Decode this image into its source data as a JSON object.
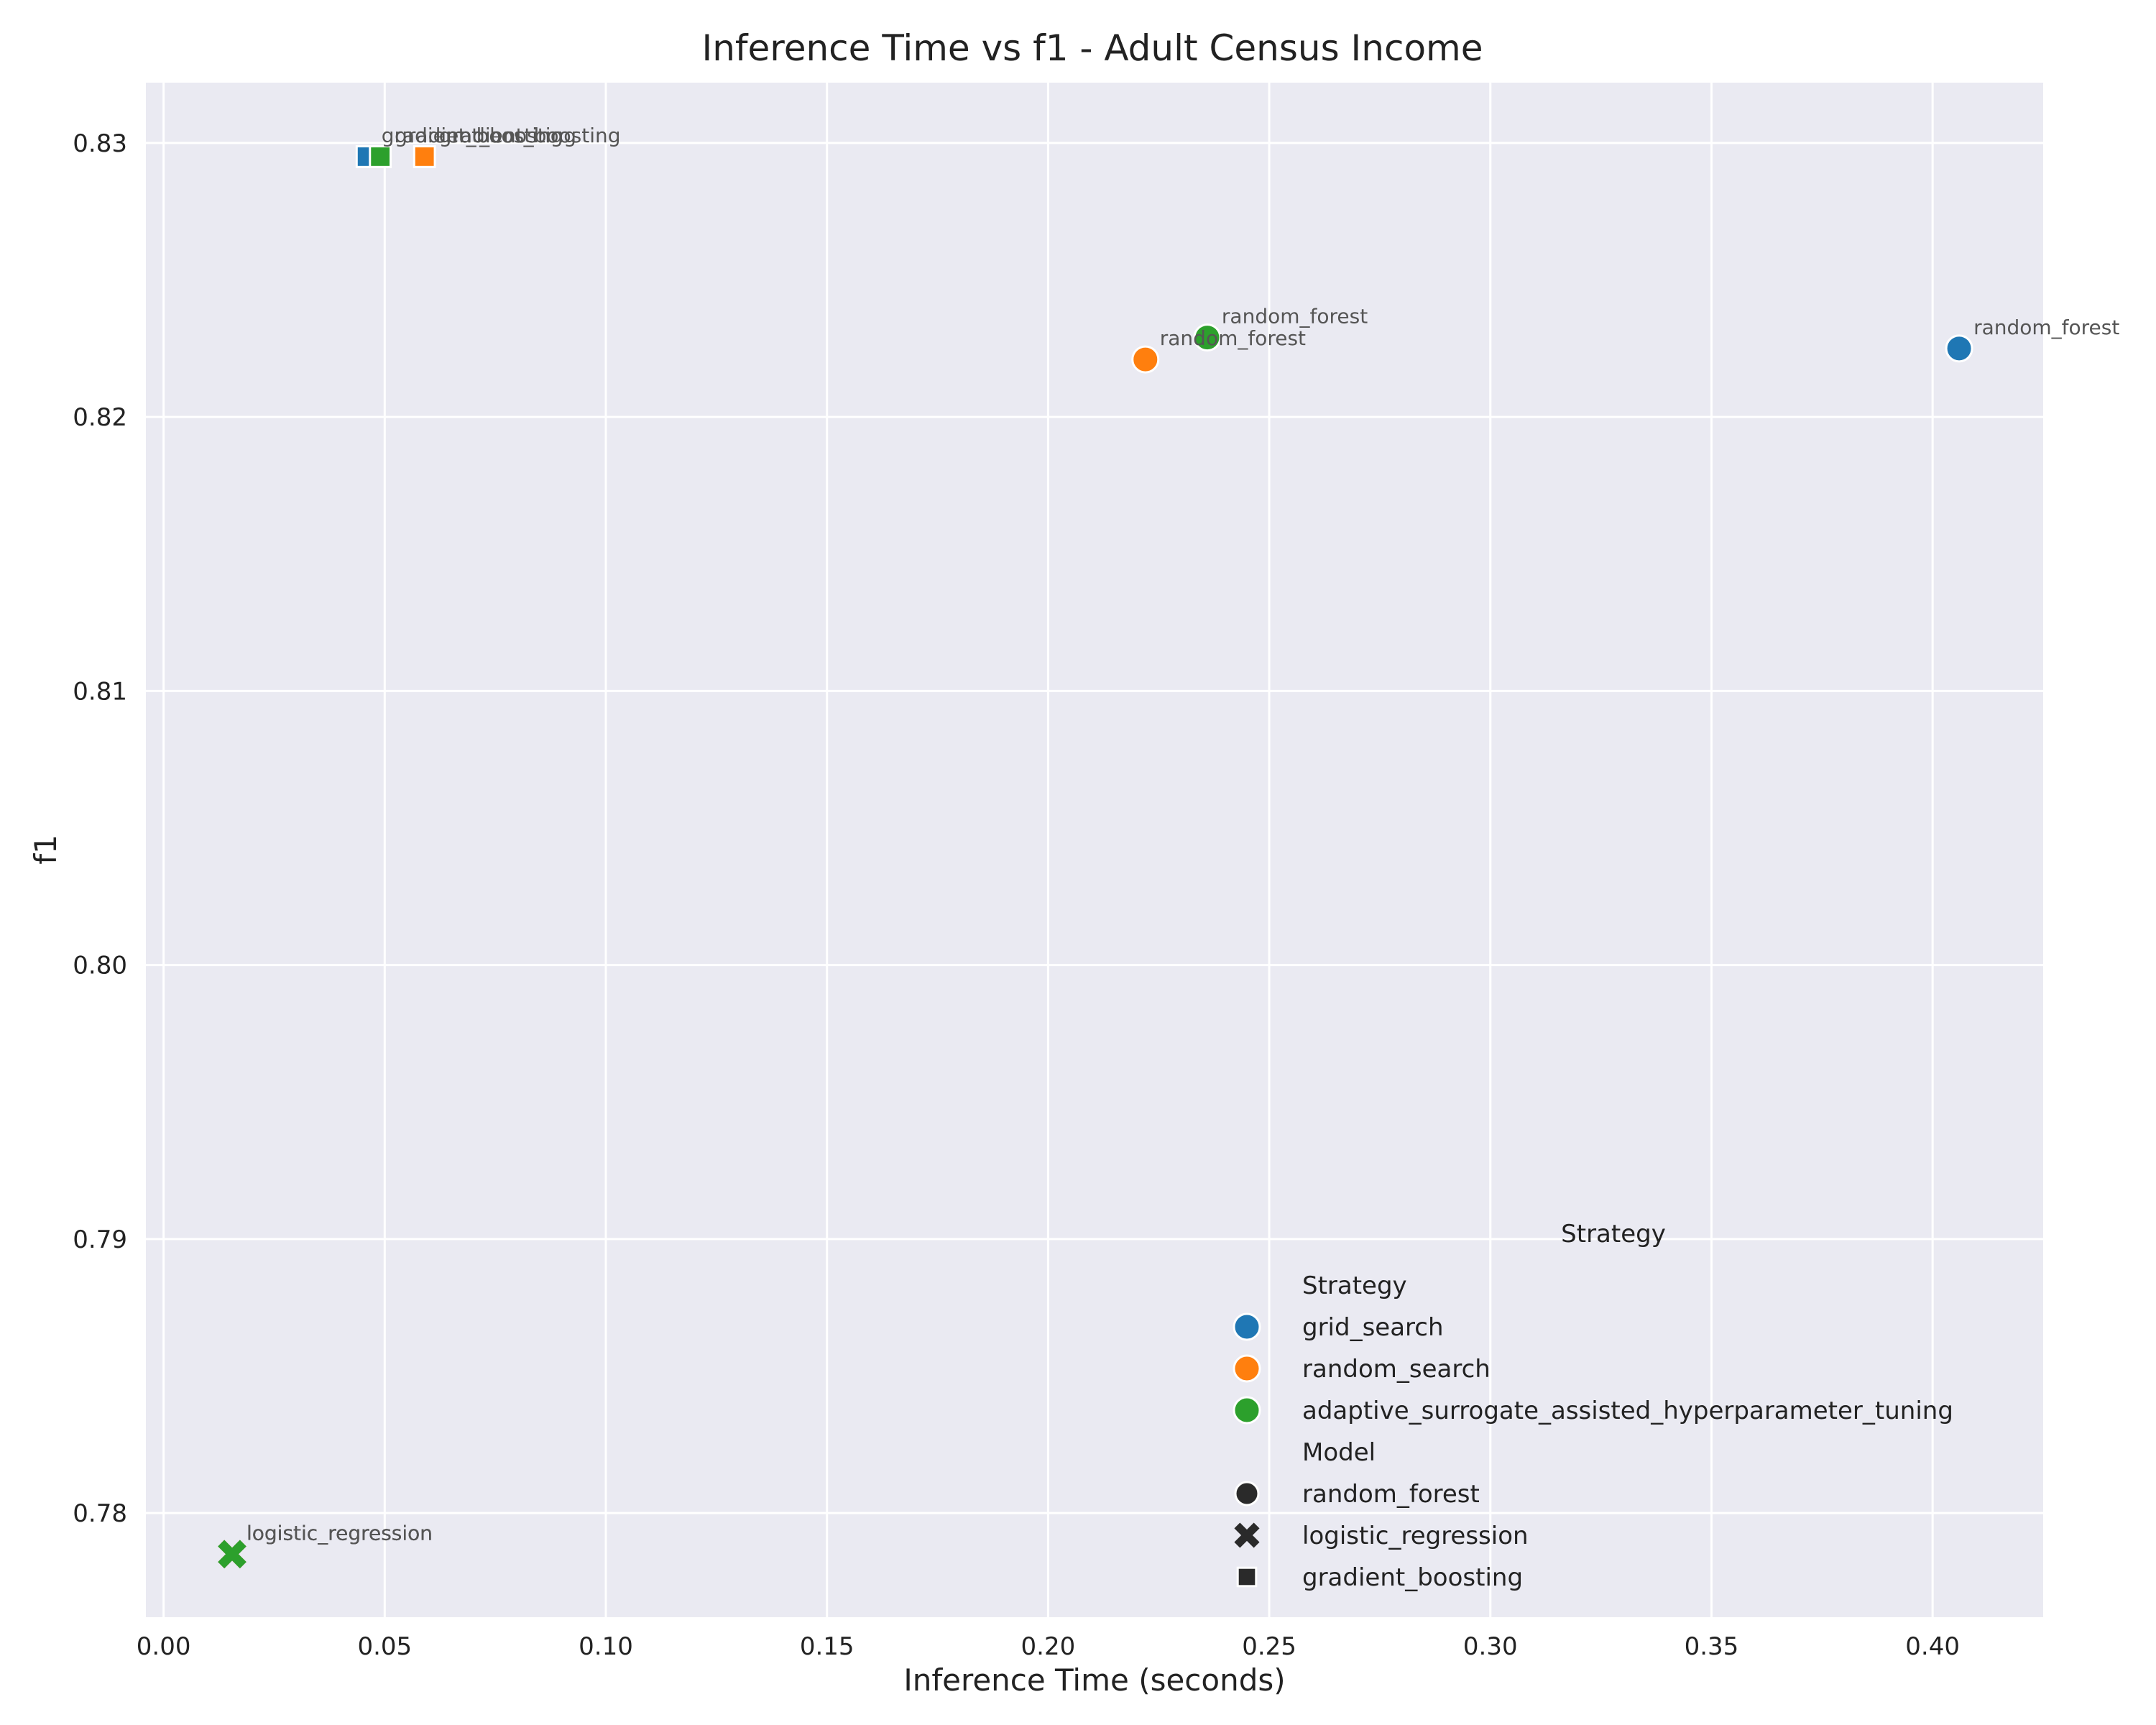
{
  "chart_data": {
    "type": "scatter",
    "title": "Inference Time vs f1 - Adult Census Income",
    "xlabel": "Inference Time (seconds)",
    "ylabel": "f1",
    "xlim": [
      -0.004,
      0.425
    ],
    "ylim": [
      0.7762,
      0.8322
    ],
    "grid": true,
    "xticks": [
      "0.00",
      "0.05",
      "0.10",
      "0.15",
      "0.20",
      "0.25",
      "0.30",
      "0.35",
      "0.40"
    ],
    "yticks": [
      "0.78",
      "0.79",
      "0.80",
      "0.81",
      "0.82",
      "0.83"
    ],
    "legend_position": "lower-right",
    "legend_title": "Strategy",
    "legend_strategy_header": "Strategy",
    "legend_model_header": "Model",
    "strategies": [
      {
        "name": "grid_search",
        "color": "#1f77b4"
      },
      {
        "name": "random_search",
        "color": "#ff7f0e"
      },
      {
        "name": "adaptive_surrogate_assisted_hyperparameter_tuning",
        "color": "#2ca02c"
      }
    ],
    "models": [
      {
        "name": "random_forest",
        "marker": "circle"
      },
      {
        "name": "logistic_regression",
        "marker": "x"
      },
      {
        "name": "gradient_boosting",
        "marker": "square"
      }
    ],
    "points": [
      {
        "strategy": "grid_search",
        "model": "random_forest",
        "x": 0.406,
        "y": 0.8225,
        "label": "random_forest"
      },
      {
        "strategy": "random_search",
        "model": "random_forest",
        "x": 0.222,
        "y": 0.8221,
        "label": "random_forest"
      },
      {
        "strategy": "adaptive_surrogate_assisted_hyperparameter_tuning",
        "model": "random_forest",
        "x": 0.236,
        "y": 0.8229,
        "label": "random_forest"
      },
      {
        "strategy": "grid_search",
        "model": "logistic_regression",
        "x": 0.0155,
        "y": 0.7785,
        "label": "logistic_regression"
      },
      {
        "strategy": "random_search",
        "model": "logistic_regression",
        "x": 0.0155,
        "y": 0.7785,
        "label": "logistic_regression"
      },
      {
        "strategy": "adaptive_surrogate_assisted_hyperparameter_tuning",
        "model": "logistic_regression",
        "x": 0.0155,
        "y": 0.7785,
        "label": "logistic_regression"
      },
      {
        "strategy": "grid_search",
        "model": "gradient_boosting",
        "x": 0.046,
        "y": 0.8295,
        "label": "gradient_boosting"
      },
      {
        "strategy": "random_search",
        "model": "gradient_boosting",
        "x": 0.059,
        "y": 0.8295,
        "label": "gradient_boosting"
      },
      {
        "strategy": "adaptive_surrogate_assisted_hyperparameter_tuning",
        "model": "gradient_boosting",
        "x": 0.049,
        "y": 0.8295,
        "label": "gradient_boosting"
      }
    ]
  }
}
